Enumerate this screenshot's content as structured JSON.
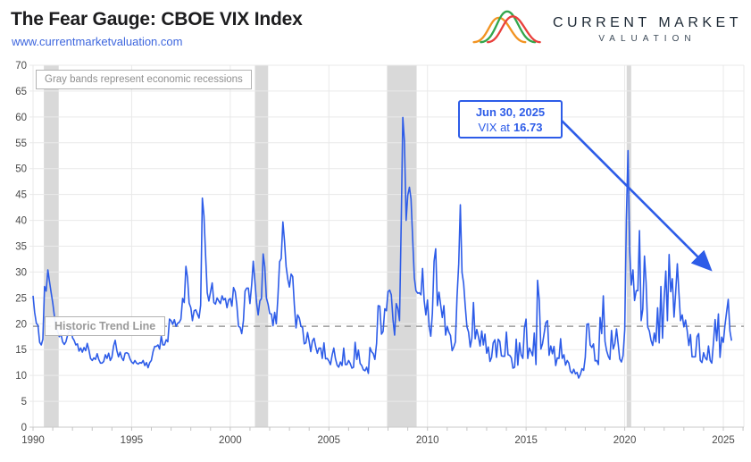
{
  "header": {
    "title": "The Fear Gauge: CBOE VIX Index",
    "url": "www.currentmarketvaluation.com"
  },
  "logo": {
    "line1": "CURRENT MARKET",
    "line2": "VALUATION",
    "curve_colors": {
      "orange": "#F29322",
      "green": "#33A64C",
      "red": "#E9403C"
    }
  },
  "notes": {
    "recession_note": "Gray bands represent economic recessions",
    "trend_label": "Historic Trend Line"
  },
  "annotation": {
    "date": "Jun 30, 2025",
    "prefix": "VIX at",
    "value": "16.73"
  },
  "colors": {
    "line": "#2d5ce8",
    "grid": "#e9e9e9",
    "axis": "#c9c9c9",
    "band": "#d9d9d9",
    "trend": "#9b9b9b",
    "tick_text": "#4a4a4a",
    "accent_blue": "#2d5ce8"
  },
  "chart_data": {
    "type": "line",
    "title": "The Fear Gauge: CBOE VIX Index",
    "series_name": "CBOE VIX Index, monthly",
    "xlabel": "",
    "ylabel": "",
    "x_start_year": 1990,
    "points_per_year": 12,
    "x_ticks": [
      1990,
      1995,
      2000,
      2005,
      2010,
      2015,
      2020,
      2025
    ],
    "y_ticks": [
      0,
      5,
      10,
      15,
      20,
      25,
      30,
      35,
      40,
      45,
      50,
      55,
      60,
      65,
      70
    ],
    "ylim": [
      0,
      70
    ],
    "grid": true,
    "legend": false,
    "trend_line_value": 19.5,
    "recessions": [
      [
        1990.55,
        1991.3
      ],
      [
        2001.25,
        2001.92
      ],
      [
        2007.95,
        2009.45
      ],
      [
        2020.1,
        2020.33
      ]
    ],
    "last_point": {
      "date": "Jun 30, 2025",
      "value": 16.73
    },
    "values": [
      25.4,
      22.2,
      20.1,
      19.7,
      16.4,
      15.9,
      17.0,
      27.2,
      26.3,
      30.4,
      28.2,
      26.1,
      24.0,
      21.5,
      19.3,
      18.5,
      17.5,
      18.0,
      16.5,
      16.0,
      16.5,
      17.8,
      18.6,
      19.3,
      17.3,
      16.8,
      15.9,
      16.1,
      14.7,
      15.3,
      14.5,
      15.4,
      14.8,
      16.2,
      14.9,
      13.3,
      12.9,
      13.4,
      13.1,
      14.2,
      13.1,
      12.4,
      12.4,
      12.7,
      14.0,
      13.3,
      14.3,
      12.9,
      13.5,
      15.7,
      16.8,
      14.8,
      13.6,
      14.5,
      13.4,
      12.9,
      14.3,
      14.4,
      14.2,
      13.2,
      12.6,
      12.3,
      12.9,
      12.4,
      12.2,
      12.5,
      12.4,
      12.9,
      11.9,
      12.5,
      11.5,
      12.5,
      12.9,
      14.6,
      15.6,
      15.6,
      15.9,
      15.1,
      17.6,
      15.9,
      15.9,
      16.9,
      16.5,
      20.9,
      20.6,
      19.9,
      20.8,
      19.5,
      20.1,
      20.3,
      20.9,
      24.9,
      24.1,
      31.1,
      28.9,
      24.0,
      23.1,
      20.6,
      22.5,
      22.7,
      21.9,
      21.1,
      23.6,
      44.3,
      40.9,
      33.0,
      26.0,
      24.4,
      26.2,
      27.9,
      24.1,
      23.8,
      25.0,
      24.4,
      23.9,
      25.4,
      24.6,
      24.9,
      23.1,
      24.6,
      24.9,
      23.4,
      27.0,
      26.2,
      23.7,
      19.5,
      19.3,
      18.1,
      20.6,
      26.3,
      26.9,
      26.9,
      23.9,
      27.5,
      32.1,
      28.1,
      24.1,
      21.7,
      24.4,
      24.9,
      33.5,
      31.0,
      25.0,
      23.8,
      22.0,
      21.9,
      19.6,
      22.2,
      20.0,
      25.1,
      32.0,
      32.6,
      39.7,
      36.0,
      31.1,
      28.6,
      27.1,
      29.6,
      29.1,
      23.7,
      19.2,
      21.7,
      21.1,
      19.5,
      19.3,
      16.1,
      16.3,
      18.3,
      16.6,
      14.6,
      16.7,
      17.2,
      15.5,
      14.3,
      15.3,
      15.3,
      13.3,
      16.3,
      13.2,
      13.3,
      12.8,
      12.1,
      14.0,
      15.3,
      13.3,
      12.0,
      11.6,
      12.6,
      11.9,
      15.3,
      12.1,
      12.1,
      12.9,
      12.3,
      11.4,
      11.6,
      16.4,
      13.1,
      14.9,
      12.3,
      11.9,
      11.1,
      10.9,
      11.6,
      10.4,
      15.4,
      14.6,
      14.2,
      13.1,
      16.2,
      23.5,
      23.4,
      18.0,
      18.5,
      22.9,
      22.5,
      26.2,
      26.5,
      25.6,
      20.8,
      17.8,
      23.9,
      22.9,
      20.6,
      39.4,
      59.9,
      55.3,
      40.0,
      44.8,
      46.4,
      44.1,
      36.5,
      28.9,
      26.4,
      25.9,
      26.0,
      25.6,
      30.7,
      24.5,
      21.7,
      24.6,
      19.5,
      17.6,
      22.0,
      32.1,
      34.5,
      23.5,
      26.1,
      23.7,
      21.2,
      23.5,
      17.8,
      19.5,
      18.4,
      17.7,
      14.8,
      15.5,
      16.5,
      25.2,
      31.6,
      43.0,
      29.9,
      27.8,
      23.4,
      19.4,
      18.4,
      15.5,
      17.2,
      24.1,
      17.1,
      18.9,
      17.5,
      15.7,
      18.6,
      15.9,
      18.0,
      14.3,
      15.5,
      12.7,
      13.5,
      16.3,
      16.9,
      13.5,
      17.0,
      16.6,
      13.8,
      13.7,
      13.7,
      18.4,
      14.0,
      13.9,
      13.4,
      11.4,
      11.6,
      17.0,
      12.0,
      16.3,
      14.0,
      13.3,
      19.2,
      20.9,
      13.3,
      15.3,
      14.6,
      13.8,
      18.2,
      12.1,
      28.4,
      24.5,
      15.1,
      16.1,
      18.2,
      20.2,
      20.6,
      13.9,
      15.7,
      14.2,
      15.6,
      11.9,
      13.4,
      13.3,
      17.1,
      13.3,
      14.0,
      12.0,
      12.9,
      12.4,
      10.8,
      10.4,
      11.2,
      10.3,
      10.6,
      9.5,
      10.2,
      11.3,
      11.0,
      13.5,
      19.9,
      20.0,
      15.9,
      15.4,
      16.1,
      12.8,
      12.9,
      12.1,
      21.2,
      18.1,
      25.4,
      16.6,
      14.8,
      13.7,
      13.1,
      18.7,
      15.1,
      16.1,
      19.0,
      16.2,
      13.2,
      12.6,
      13.8,
      18.8,
      40.1,
      53.5,
      34.2,
      27.5,
      30.4,
      24.5,
      26.4,
      26.4,
      38.0,
      20.6,
      22.8,
      33.1,
      28.0,
      19.4,
      18.6,
      16.8,
      15.8,
      18.2,
      16.5,
      23.1,
      16.3,
      27.2,
      17.2,
      24.8,
      30.2,
      20.6,
      33.4,
      26.2,
      28.7,
      21.3,
      25.9,
      31.6,
      25.9,
      20.6,
      21.7,
      19.4,
      20.7,
      18.7,
      15.8,
      17.9,
      13.6,
      13.6,
      13.6,
      17.5,
      18.1,
      12.9,
      12.5,
      14.4,
      13.4,
      13.0,
      15.7,
      12.9,
      12.4,
      16.4,
      20.8,
      16.7,
      21.9,
      13.5,
      17.4,
      16.4,
      19.6,
      22.3,
      24.7,
      18.6,
      16.73
    ]
  }
}
